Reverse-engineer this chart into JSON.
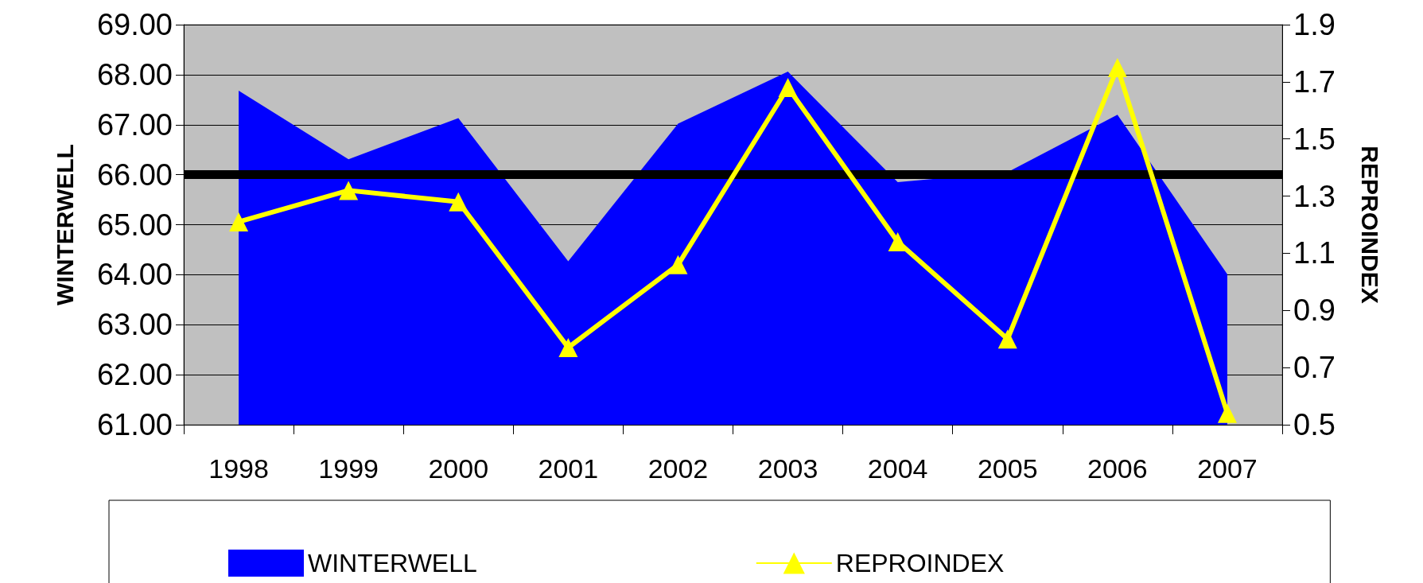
{
  "chart_data": {
    "type": "area",
    "ylabel": "WINTERWELL",
    "y2label": "REPROINDEX",
    "categories": [
      "1998",
      "1999",
      "2000",
      "2001",
      "2002",
      "2003",
      "2004",
      "2005",
      "2006",
      "2007"
    ],
    "series": [
      {
        "name": "WINTERWELL",
        "color": "#0000ff",
        "values": [
          67.68,
          66.31,
          67.13,
          64.27,
          67.02,
          68.06,
          65.85,
          66.05,
          67.2,
          64.01
        ]
      },
      {
        "name": "REPROINDEX",
        "type": "line",
        "axis": "y2",
        "color": "#ffff00",
        "marker": "triangle",
        "values": [
          1.21,
          1.32,
          1.28,
          0.77,
          1.06,
          1.68,
          1.14,
          0.8,
          1.75,
          0.54
        ]
      }
    ],
    "ylim": [
      61,
      69
    ],
    "yticks": [
      {
        "value": 61,
        "label": "61.00"
      },
      {
        "value": 62,
        "label": "62.00"
      },
      {
        "value": 63,
        "label": "63.00"
      },
      {
        "value": 64,
        "label": "64.00"
      },
      {
        "value": 65,
        "label": "65.00"
      },
      {
        "value": 66,
        "label": "66.00"
      },
      {
        "value": 67,
        "label": "67.00"
      },
      {
        "value": 68,
        "label": "68.00"
      },
      {
        "value": 69,
        "label": "69.00"
      }
    ],
    "y2lim": [
      0.5,
      1.9
    ],
    "y2ticks": [
      0.5,
      0.7,
      0.9,
      1.1,
      1.3,
      1.5,
      1.7,
      1.9
    ],
    "ref_lines": [
      {
        "axis": "y",
        "value": 66,
        "color": "#000000"
      }
    ],
    "grid": "y",
    "legend": "bottom"
  }
}
